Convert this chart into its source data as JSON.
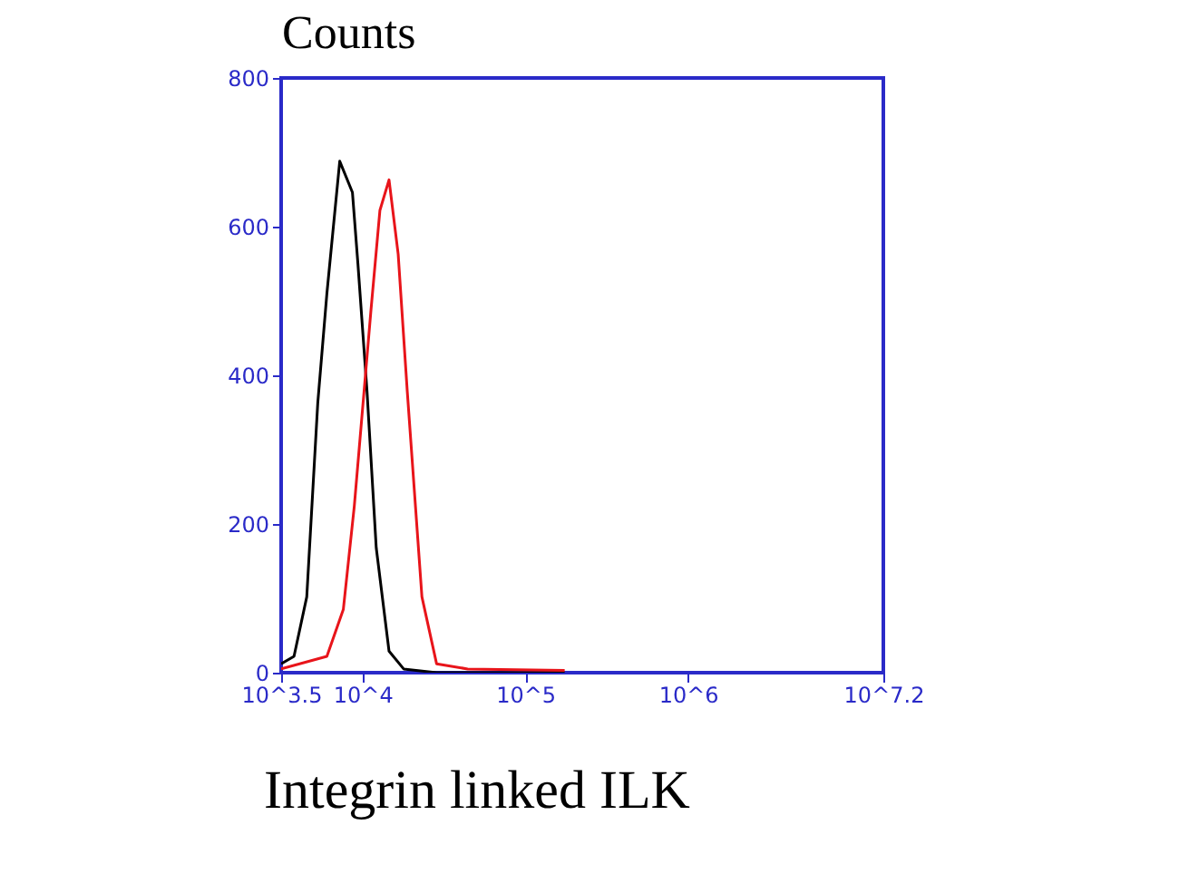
{
  "chart_data": {
    "type": "line",
    "ylabel": "Counts",
    "xlabel": "Integrin linked ILK",
    "log": "x",
    "xlim": [
      3162,
      15850000
    ],
    "xticks": [
      {
        "value": 3162,
        "label": "10^3.5"
      },
      {
        "value": 10000,
        "label": "10^4"
      },
      {
        "value": 100000,
        "label": "10^5"
      },
      {
        "value": 1000000,
        "label": "10^6"
      },
      {
        "value": 15850000,
        "label": "10^7.2"
      }
    ],
    "ylim": [
      0,
      800
    ],
    "yticks": [
      0,
      200,
      400,
      600,
      800
    ],
    "grid": false,
    "marker": "none",
    "line_style": "solid",
    "series": [
      {
        "color": "#000000",
        "x": [
          3162,
          3793,
          4543,
          5309,
          6039,
          7244,
          8670,
          9376,
          10660,
          12140,
          14550,
          17900,
          28510,
          174600
        ],
        "values": [
          12,
          22,
          102,
          363,
          510,
          688,
          646,
          549,
          378,
          168,
          29,
          5,
          0,
          0
        ]
      },
      {
        "color": "#e8141a",
        "x": [
          3162,
          6039,
          7620,
          8900,
          11240,
          12790,
          14550,
          16560,
          18840,
          23170,
          28510,
          44260,
          174600
        ],
        "values": [
          5,
          22,
          85,
          224,
          485,
          622,
          663,
          563,
          378,
          102,
          12,
          5,
          3
        ]
      }
    ]
  }
}
